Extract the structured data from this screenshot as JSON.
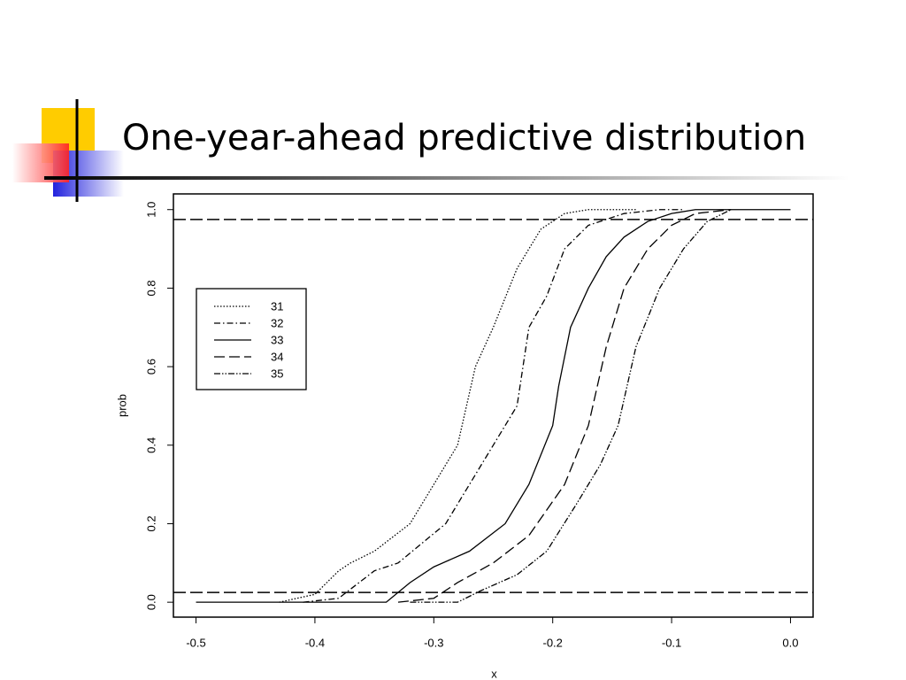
{
  "slide_title": "One-year-ahead predictive distribution",
  "chart_data": {
    "type": "line",
    "xlabel": "x",
    "ylabel": "prob",
    "xlim": [
      -0.519,
      0.019
    ],
    "ylim": [
      -0.038,
      1.04
    ],
    "xticks": [
      -0.5,
      -0.4,
      -0.3,
      -0.2,
      -0.1,
      {
        "value": 0,
        "label": "0.0"
      }
    ],
    "yticks": [
      {
        "value": 0,
        "label": "0.0"
      },
      0.2,
      0.4,
      0.6,
      0.8,
      {
        "value": 1,
        "label": "1.0"
      }
    ],
    "hlines": [
      0.025,
      0.975
    ],
    "legend": "upper left",
    "series": [
      {
        "name": "31",
        "color": "#000000",
        "dash": "dotted",
        "x": [
          -0.43,
          -0.4,
          -0.38,
          -0.37,
          -0.35,
          -0.32,
          -0.3,
          -0.28,
          -0.265,
          -0.25,
          -0.23,
          -0.21,
          -0.19,
          -0.17,
          -0.13
        ],
        "values": [
          0,
          0.02,
          0.08,
          0.1,
          0.13,
          0.2,
          0.3,
          0.4,
          0.6,
          0.7,
          0.85,
          0.95,
          0.99,
          1,
          1
        ]
      },
      {
        "name": "32",
        "color": "#000000",
        "dash": "dashdot",
        "x": [
          -0.41,
          -0.38,
          -0.35,
          -0.33,
          -0.31,
          -0.29,
          -0.27,
          -0.25,
          -0.23,
          -0.22,
          -0.205,
          -0.19,
          -0.17,
          -0.14,
          -0.11,
          -0.09
        ],
        "values": [
          0,
          0.01,
          0.08,
          0.1,
          0.15,
          0.2,
          0.3,
          0.4,
          0.5,
          0.7,
          0.78,
          0.9,
          0.96,
          0.99,
          1,
          1
        ]
      },
      {
        "name": "33",
        "color": "#000000",
        "dash": "solid",
        "x": [
          -0.5,
          -0.34,
          -0.32,
          -0.3,
          -0.27,
          -0.24,
          -0.22,
          -0.2,
          -0.195,
          -0.185,
          -0.17,
          -0.155,
          -0.14,
          -0.12,
          -0.1,
          -0.08,
          0
        ],
        "values": [
          0,
          0,
          0.05,
          0.09,
          0.13,
          0.2,
          0.3,
          0.45,
          0.55,
          0.7,
          0.8,
          0.88,
          0.93,
          0.97,
          0.99,
          1,
          1
        ]
      },
      {
        "name": "34",
        "color": "#000000",
        "dash": "dashed",
        "x": [
          -0.33,
          -0.3,
          -0.28,
          -0.25,
          -0.22,
          -0.19,
          -0.17,
          -0.155,
          -0.14,
          -0.12,
          -0.1,
          -0.08,
          -0.05
        ],
        "values": [
          0,
          0.01,
          0.05,
          0.1,
          0.17,
          0.3,
          0.45,
          0.65,
          0.8,
          0.9,
          0.96,
          0.99,
          1
        ]
      },
      {
        "name": "35",
        "color": "#000000",
        "dash": "dashdotdot",
        "x": [
          -0.32,
          -0.28,
          -0.26,
          -0.23,
          -0.205,
          -0.18,
          -0.16,
          -0.145,
          -0.13,
          -0.11,
          -0.09,
          -0.07,
          -0.05
        ],
        "values": [
          0,
          0,
          0.03,
          0.07,
          0.13,
          0.25,
          0.35,
          0.45,
          0.65,
          0.8,
          0.9,
          0.97,
          1
        ]
      }
    ]
  }
}
